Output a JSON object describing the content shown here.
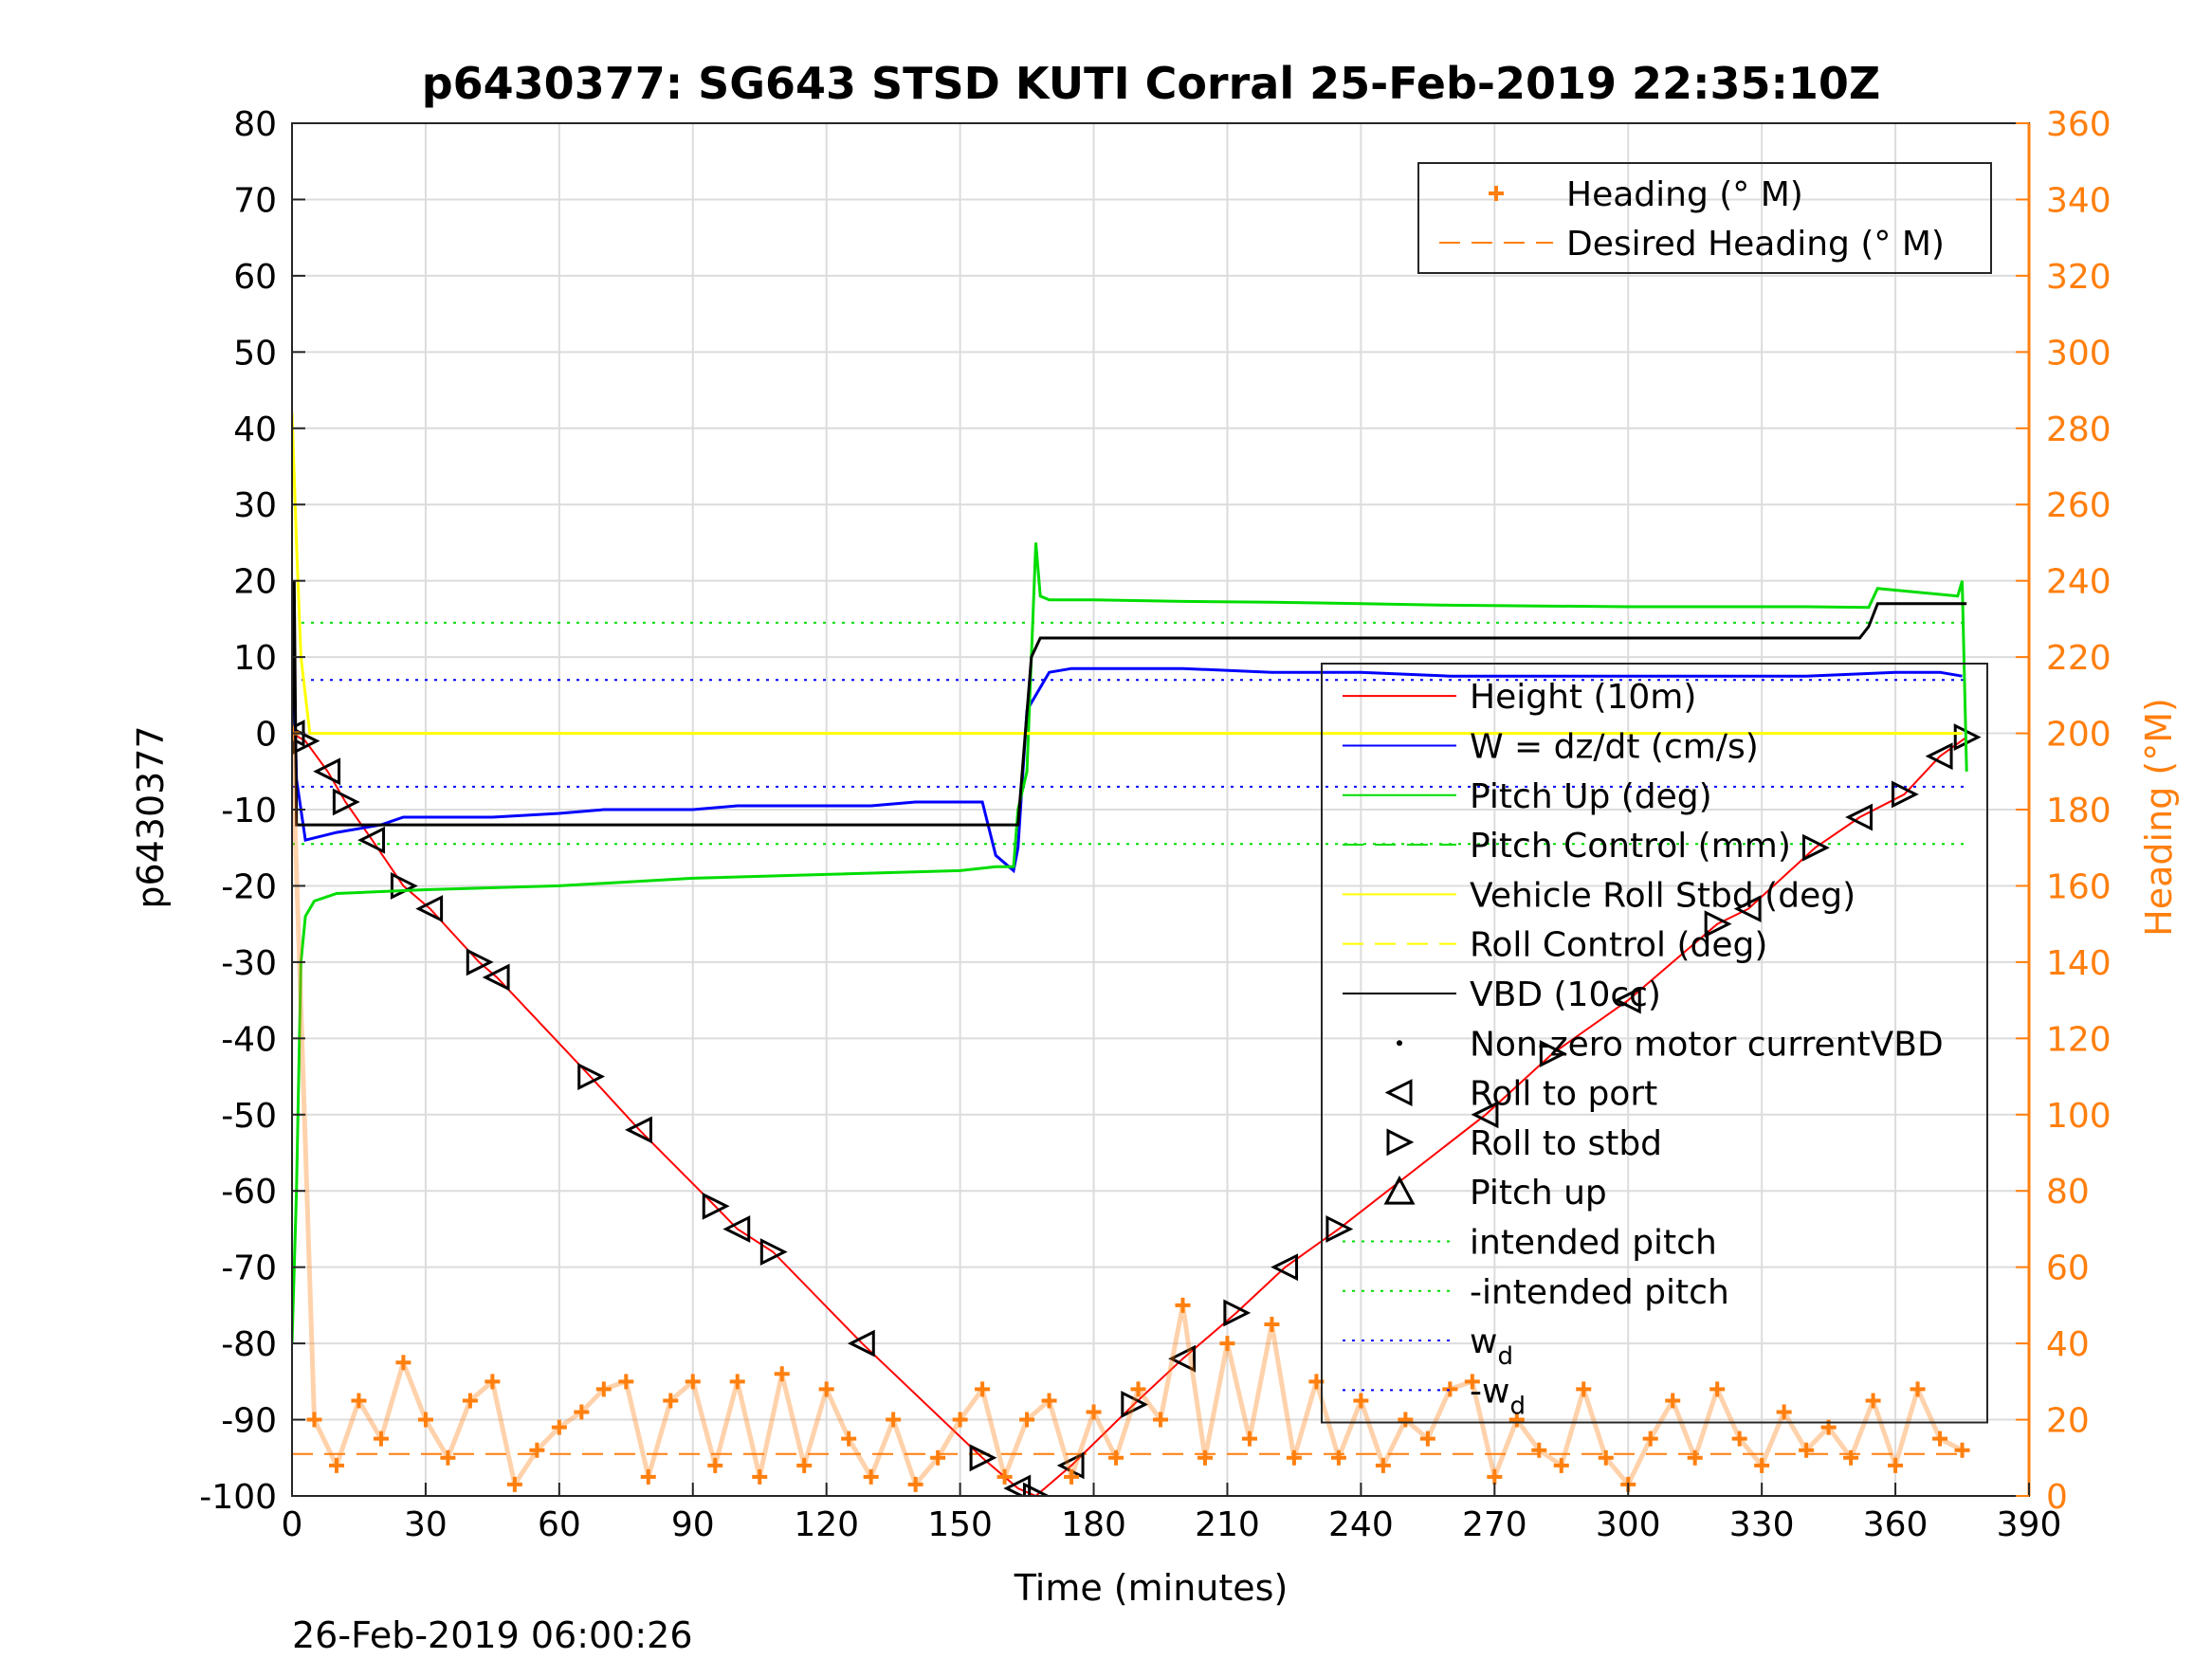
{
  "chart_data": {
    "type": "line",
    "title": "p6430377: SG643 STSD KUTI Corral 25-Feb-2019 22:35:10Z",
    "xlabel": "Time (minutes)",
    "ylabel": "p6430377",
    "ylabel_right": "Heading (°M)",
    "xlim": [
      0,
      390
    ],
    "ylim": [
      -100,
      80
    ],
    "ylim_right": [
      0,
      360
    ],
    "x_ticks": [
      0,
      30,
      60,
      90,
      120,
      150,
      180,
      210,
      240,
      270,
      300,
      330,
      360,
      390
    ],
    "y_ticks": [
      -100,
      -90,
      -80,
      -70,
      -60,
      -50,
      -40,
      -30,
      -20,
      -10,
      0,
      10,
      20,
      30,
      40,
      50,
      60,
      70,
      80
    ],
    "y_ticks_right": [
      0,
      20,
      40,
      60,
      80,
      100,
      120,
      140,
      160,
      180,
      200,
      220,
      240,
      260,
      280,
      300,
      320,
      340,
      360
    ],
    "grid": true,
    "footer": "26-Feb-2019 06:00:26",
    "legend_heading": {
      "placement": "top-right",
      "entries": [
        {
          "label": "Heading (° M)",
          "color": "#ff7f0e",
          "marker": "plus"
        },
        {
          "label": "Desired Heading (° M)",
          "color": "#ff7f0e",
          "style": "dashed"
        }
      ]
    },
    "legend_main": {
      "placement": "right",
      "entries": [
        {
          "label": "Height (10m)",
          "color": "#ff0000",
          "style": "solid"
        },
        {
          "label": "W = dz/dt (cm/s)",
          "color": "#0000ff",
          "style": "solid"
        },
        {
          "label": "Pitch Up (deg)",
          "color": "#00dd00",
          "style": "solid"
        },
        {
          "label": "Pitch Control (mm)",
          "color": "#00dd00",
          "style": "dashed"
        },
        {
          "label": "Vehicle Roll Stbd (deg)",
          "color": "#ffff00",
          "style": "solid"
        },
        {
          "label": "Roll Control (deg)",
          "color": "#ffff00",
          "style": "dashed"
        },
        {
          "label": "VBD (10cc)",
          "color": "#000000",
          "style": "solid"
        },
        {
          "label": "Non-zero motor currentVBD",
          "color": "#000000",
          "marker": "dot"
        },
        {
          "label": "Roll to port",
          "color": "#000000",
          "marker": "triangle-left"
        },
        {
          "label": "Roll to stbd",
          "color": "#000000",
          "marker": "triangle-right"
        },
        {
          "label": "Pitch up",
          "color": "#000000",
          "marker": "triangle-up"
        },
        {
          "label": "intended pitch",
          "color": "#00dd00",
          "style": "dotted"
        },
        {
          "label": "-intended pitch",
          "color": "#00dd00",
          "style": "dotted"
        },
        {
          "label": "w",
          "sub": "d",
          "color": "#0000ff",
          "style": "dotted"
        },
        {
          "label": "-w",
          "sub": "d",
          "color": "#0000ff",
          "style": "dotted"
        }
      ]
    },
    "series": [
      {
        "name": "Height (10m)",
        "color": "#ff0000",
        "x": [
          0,
          3,
          8,
          12,
          18,
          25,
          31,
          42,
          46,
          67,
          78,
          95,
          100,
          108,
          128,
          155,
          163,
          167,
          175,
          189,
          200,
          212,
          223,
          235,
          268,
          283,
          300,
          320,
          327,
          342,
          352,
          362,
          370,
          376
        ],
        "y": [
          0,
          -1,
          -5,
          -9,
          -14,
          -20,
          -23,
          -30,
          -32,
          -45,
          -52,
          -62,
          -65,
          -68,
          -80,
          -95,
          -99,
          -100,
          -96,
          -88,
          -82,
          -76,
          -70,
          -65,
          -50,
          -42,
          -35,
          -25,
          -23,
          -15,
          -11,
          -8,
          -3,
          -0.5
        ]
      },
      {
        "name": "W = dz/dt (cm/s)",
        "color": "#0000ff",
        "x": [
          0,
          1,
          3,
          10,
          20,
          25,
          30,
          45,
          60,
          70,
          80,
          90,
          100,
          110,
          120,
          130,
          140,
          150,
          155,
          158,
          162,
          163,
          165,
          167,
          170,
          175,
          180,
          190,
          200,
          220,
          240,
          260,
          280,
          300,
          320,
          340,
          360,
          370,
          375
        ],
        "y": [
          18,
          -6,
          -14,
          -13,
          -12,
          -11,
          -11,
          -11,
          -10.5,
          -10,
          -10,
          -10,
          -9.5,
          -9.5,
          -9.5,
          -9.5,
          -9,
          -9,
          -9,
          -16,
          -18,
          -15,
          3,
          5,
          8,
          8.5,
          8.5,
          8.5,
          8.5,
          8,
          8,
          7.5,
          7.5,
          7.5,
          7.5,
          7.5,
          8,
          8,
          7.5
        ]
      },
      {
        "name": "Pitch Up (deg)",
        "color": "#00dd00",
        "x": [
          0,
          1,
          2,
          3,
          5,
          10,
          30,
          60,
          90,
          120,
          150,
          158,
          162,
          163,
          165,
          166,
          167,
          168,
          170,
          175,
          180,
          200,
          220,
          240,
          260,
          280,
          300,
          320,
          340,
          354,
          356,
          365,
          374,
          375,
          376
        ],
        "y": [
          -80,
          -60,
          -30,
          -24,
          -22,
          -21,
          -20.5,
          -20,
          -19,
          -18.5,
          -18,
          -17.5,
          -17.5,
          -10,
          -5,
          10,
          25,
          18,
          17.5,
          17.5,
          17.5,
          17.3,
          17.2,
          17,
          16.8,
          16.7,
          16.6,
          16.6,
          16.6,
          16.5,
          19,
          18.5,
          18,
          20,
          -5
        ]
      },
      {
        "name": "Vehicle Roll Stbd (deg)",
        "color": "#ffff00",
        "x": [
          0,
          1,
          2,
          4,
          10,
          30,
          60,
          90,
          120,
          150,
          160,
          165,
          170,
          200,
          240,
          280,
          320,
          360,
          370,
          375
        ],
        "y": [
          42,
          25,
          10,
          0,
          0,
          0,
          0,
          0,
          0,
          0,
          0,
          0,
          0,
          0,
          0,
          0,
          0,
          0,
          0,
          0
        ]
      },
      {
        "name": "VBD (10cc)",
        "color": "#000000",
        "x": [
          0,
          0.5,
          1,
          4,
          160,
          163,
          166,
          168,
          352,
          354,
          356,
          360,
          376
        ],
        "y": [
          0,
          20,
          -12,
          -12,
          -12,
          -12,
          10,
          12.5,
          12.5,
          14,
          17,
          17,
          17
        ]
      },
      {
        "name": "Heading (° M)",
        "color": "#ff7f0e",
        "axis": "right",
        "x": [
          0,
          5,
          10,
          15,
          20,
          25,
          30,
          35,
          40,
          45,
          50,
          55,
          60,
          65,
          70,
          75,
          80,
          85,
          90,
          95,
          100,
          105,
          110,
          115,
          120,
          125,
          130,
          135,
          140,
          145,
          150,
          155,
          160,
          165,
          170,
          175,
          180,
          185,
          190,
          195,
          200,
          205,
          210,
          215,
          220,
          225,
          230,
          235,
          240,
          245,
          250,
          255,
          260,
          265,
          270,
          275,
          280,
          285,
          290,
          295,
          300,
          305,
          310,
          315,
          320,
          325,
          330,
          335,
          340,
          345,
          350,
          355,
          360,
          365,
          370,
          375
        ],
        "y": [
          200,
          20,
          8,
          25,
          15,
          35,
          20,
          10,
          25,
          30,
          3,
          12,
          18,
          22,
          28,
          30,
          5,
          25,
          30,
          8,
          30,
          5,
          32,
          8,
          28,
          15,
          5,
          20,
          3,
          10,
          20,
          28,
          5,
          20,
          25,
          5,
          22,
          10,
          28,
          20,
          50,
          10,
          40,
          15,
          45,
          10,
          30,
          10,
          25,
          8,
          20,
          15,
          28,
          30,
          5,
          20,
          12,
          8,
          28,
          10,
          3,
          15,
          25,
          10,
          28,
          15,
          8,
          22,
          12,
          18,
          10,
          25,
          8,
          28,
          15,
          12
        ]
      }
    ],
    "desired_heading_right": 11,
    "intended_pitch": 14.5,
    "w_d": 7
  }
}
